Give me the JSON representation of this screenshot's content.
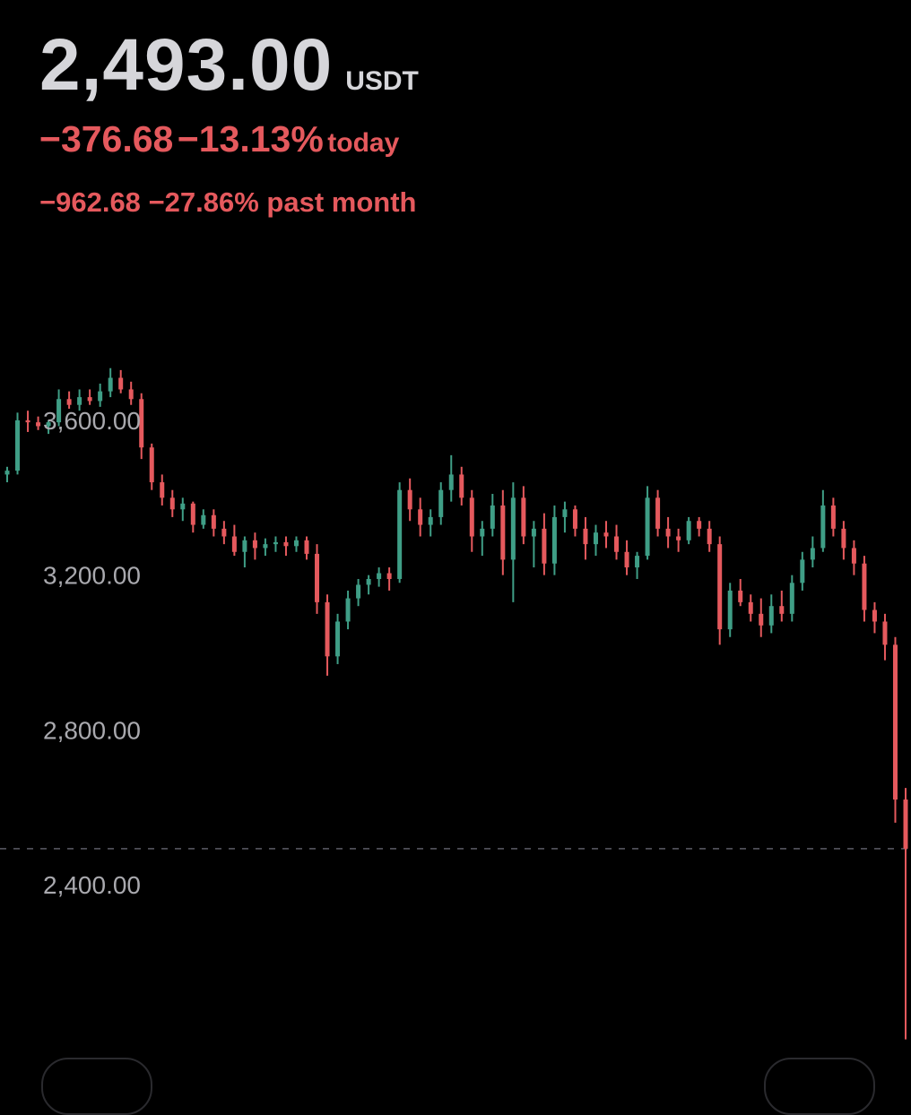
{
  "header": {
    "price": "2,493.00",
    "currency": "USDT",
    "today_change_abs": "−376.68",
    "today_change_pct": "−13.13%",
    "today_label": "today",
    "month_change_abs": "−962.68",
    "month_change_pct": "−27.86%",
    "month_label": "past month"
  },
  "colors": {
    "up": "#3f9e86",
    "down": "#e5595d",
    "axis_text": "#a9a9ae",
    "dashed": "#5c5c66",
    "background": "#000000"
  },
  "chart_data": {
    "type": "candlestick",
    "y_ticks": [
      3600,
      3200,
      2800,
      2400
    ],
    "y_tick_labels": [
      "3,600.00",
      "3,200.00",
      "2,800.00",
      "2,400.00"
    ],
    "current_price": 2493,
    "grid": false,
    "ohlc": [
      [
        3460,
        3480,
        3440,
        3470
      ],
      [
        3470,
        3620,
        3460,
        3600
      ],
      [
        3600,
        3625,
        3570,
        3595
      ],
      [
        3595,
        3610,
        3575,
        3585
      ],
      [
        3585,
        3600,
        3565,
        3595
      ],
      [
        3595,
        3680,
        3585,
        3655
      ],
      [
        3655,
        3675,
        3630,
        3640
      ],
      [
        3640,
        3680,
        3625,
        3660
      ],
      [
        3660,
        3680,
        3640,
        3650
      ],
      [
        3650,
        3695,
        3635,
        3675
      ],
      [
        3675,
        3735,
        3660,
        3710
      ],
      [
        3710,
        3730,
        3670,
        3680
      ],
      [
        3680,
        3700,
        3640,
        3655
      ],
      [
        3655,
        3670,
        3500,
        3530
      ],
      [
        3530,
        3540,
        3420,
        3440
      ],
      [
        3440,
        3460,
        3380,
        3400
      ],
      [
        3400,
        3420,
        3350,
        3370
      ],
      [
        3370,
        3400,
        3340,
        3385
      ],
      [
        3385,
        3390,
        3310,
        3330
      ],
      [
        3330,
        3370,
        3320,
        3355
      ],
      [
        3355,
        3370,
        3300,
        3320
      ],
      [
        3320,
        3340,
        3280,
        3300
      ],
      [
        3300,
        3330,
        3250,
        3260
      ],
      [
        3260,
        3300,
        3220,
        3290
      ],
      [
        3290,
        3310,
        3240,
        3270
      ],
      [
        3270,
        3295,
        3250,
        3280
      ],
      [
        3280,
        3300,
        3260,
        3285
      ],
      [
        3285,
        3300,
        3250,
        3275
      ],
      [
        3275,
        3300,
        3260,
        3290
      ],
      [
        3290,
        3300,
        3240,
        3255
      ],
      [
        3255,
        3280,
        3100,
        3130
      ],
      [
        3130,
        3150,
        2940,
        2990
      ],
      [
        2990,
        3100,
        2970,
        3080
      ],
      [
        3080,
        3160,
        3060,
        3140
      ],
      [
        3140,
        3190,
        3120,
        3175
      ],
      [
        3175,
        3200,
        3150,
        3190
      ],
      [
        3190,
        3220,
        3170,
        3205
      ],
      [
        3205,
        3220,
        3160,
        3190
      ],
      [
        3190,
        3440,
        3180,
        3420
      ],
      [
        3420,
        3450,
        3340,
        3370
      ],
      [
        3370,
        3400,
        3300,
        3330
      ],
      [
        3330,
        3370,
        3300,
        3350
      ],
      [
        3350,
        3440,
        3330,
        3420
      ],
      [
        3420,
        3510,
        3390,
        3460
      ],
      [
        3460,
        3480,
        3380,
        3400
      ],
      [
        3400,
        3420,
        3260,
        3300
      ],
      [
        3300,
        3340,
        3250,
        3320
      ],
      [
        3320,
        3410,
        3300,
        3380
      ],
      [
        3380,
        3420,
        3200,
        3240
      ],
      [
        3240,
        3440,
        3130,
        3400
      ],
      [
        3400,
        3430,
        3280,
        3300
      ],
      [
        3300,
        3340,
        3220,
        3320
      ],
      [
        3320,
        3360,
        3200,
        3230
      ],
      [
        3230,
        3380,
        3200,
        3350
      ],
      [
        3350,
        3390,
        3310,
        3370
      ],
      [
        3370,
        3380,
        3300,
        3320
      ],
      [
        3320,
        3350,
        3240,
        3280
      ],
      [
        3280,
        3330,
        3250,
        3310
      ],
      [
        3310,
        3340,
        3270,
        3300
      ],
      [
        3300,
        3330,
        3240,
        3260
      ],
      [
        3260,
        3290,
        3200,
        3220
      ],
      [
        3220,
        3260,
        3190,
        3250
      ],
      [
        3250,
        3430,
        3240,
        3400
      ],
      [
        3400,
        3420,
        3300,
        3320
      ],
      [
        3320,
        3350,
        3270,
        3300
      ],
      [
        3300,
        3320,
        3260,
        3290
      ],
      [
        3290,
        3350,
        3280,
        3340
      ],
      [
        3340,
        3350,
        3300,
        3320
      ],
      [
        3320,
        3340,
        3260,
        3280
      ],
      [
        3280,
        3300,
        3020,
        3060
      ],
      [
        3060,
        3180,
        3040,
        3160
      ],
      [
        3160,
        3190,
        3120,
        3130
      ],
      [
        3130,
        3150,
        3080,
        3100
      ],
      [
        3100,
        3140,
        3040,
        3070
      ],
      [
        3070,
        3150,
        3050,
        3120
      ],
      [
        3120,
        3160,
        3080,
        3100
      ],
      [
        3100,
        3200,
        3080,
        3180
      ],
      [
        3180,
        3260,
        3160,
        3240
      ],
      [
        3240,
        3300,
        3220,
        3270
      ],
      [
        3270,
        3420,
        3260,
        3380
      ],
      [
        3380,
        3400,
        3300,
        3320
      ],
      [
        3320,
        3340,
        3240,
        3270
      ],
      [
        3270,
        3290,
        3200,
        3230
      ],
      [
        3230,
        3250,
        3080,
        3110
      ],
      [
        3110,
        3130,
        3050,
        3080
      ],
      [
        3080,
        3100,
        2980,
        3020
      ],
      [
        3020,
        3040,
        2560,
        2620
      ],
      [
        2620,
        2650,
        2000,
        2493
      ]
    ]
  },
  "bottom": {
    "left_button": "",
    "right_button": ""
  }
}
